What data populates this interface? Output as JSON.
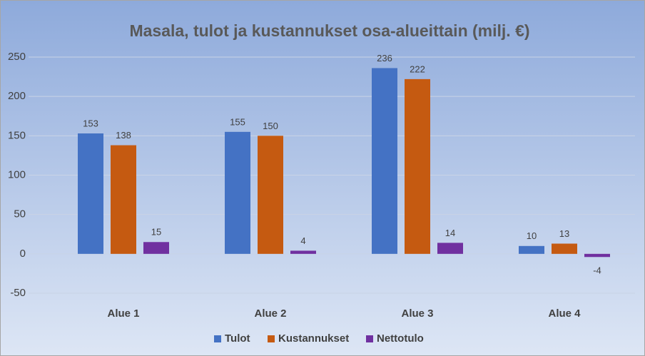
{
  "chart_data": {
    "type": "bar",
    "title": "Masala, tulot ja kustannukset osa-alueittain (milj. €)",
    "categories": [
      "Alue 1",
      "Alue 2",
      "Alue 3",
      "Alue 4"
    ],
    "series": [
      {
        "name": "Tulot",
        "color": "#4472c4",
        "values": [
          153,
          155,
          236,
          10
        ]
      },
      {
        "name": "Kustannukset",
        "color": "#c55a11",
        "values": [
          138,
          150,
          222,
          13
        ]
      },
      {
        "name": "Nettotulo",
        "color": "#7030a0",
        "values": [
          15,
          4,
          14,
          -4
        ]
      }
    ],
    "ylim": [
      -50,
      250
    ],
    "yticks": [
      -50,
      0,
      50,
      100,
      150,
      200,
      250
    ],
    "grid": true,
    "legend": "bottom"
  }
}
